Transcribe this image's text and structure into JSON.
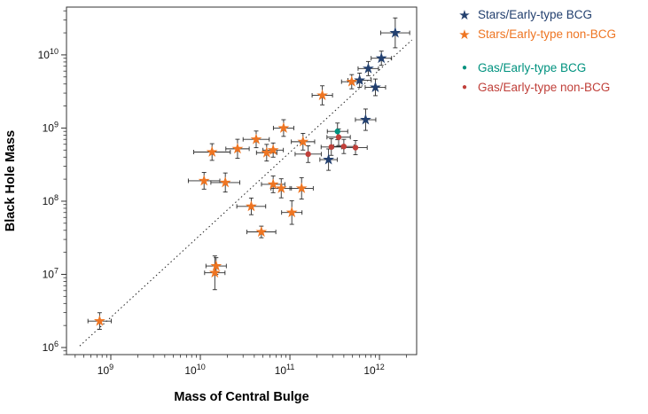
{
  "chart_data": {
    "type": "scatter",
    "title": "",
    "xlabel": "Mass of Central Bulge",
    "ylabel": "Black Hole Mass",
    "x_scale": "log",
    "y_scale": "log",
    "xlim": [
      320000000.0,
      2600000000000.0
    ],
    "ylim": [
      800000.0,
      45000000000.0
    ],
    "x_tick_exponents": [
      9,
      10,
      11,
      12
    ],
    "y_tick_exponents": [
      6,
      7,
      8,
      9,
      10
    ],
    "grid": false,
    "legend_position": "right-outside",
    "reference_line": {
      "style": "dotted",
      "color": "#222222",
      "points": [
        [
          450000000.0,
          1050000.0
        ],
        [
          2300000000000.0,
          16000000000.0
        ]
      ]
    },
    "axis_color": "#333333",
    "errorbar_color": "#2a2a2a",
    "series": [
      {
        "name": "Stars/Early-type BCG",
        "marker": "star",
        "color": "#23406f",
        "points": [
          [
            1500000000000.0,
            20000000000.0,
            1.45,
            1.6
          ],
          [
            1050000000000.0,
            9000000000.0,
            1.3,
            1.25
          ],
          [
            750000000000.0,
            6500000000.0,
            1.3,
            1.25
          ],
          [
            600000000000.0,
            4500000000.0,
            1.35,
            1.25
          ],
          [
            900000000000.0,
            3600000000.0,
            1.3,
            1.3
          ],
          [
            700000000000.0,
            1300000000.0,
            1.3,
            1.4
          ],
          [
            270000000000.0,
            370000000.0,
            1.25,
            1.4
          ]
        ]
      },
      {
        "name": "Stars/Early-type non-BCG",
        "marker": "star",
        "color": "#ee7522",
        "points": [
          [
            750000000.0,
            2300000.0,
            1.35,
            1.3
          ],
          [
            15000000000.0,
            13000000.0,
            1.3,
            1.3
          ],
          [
            14500000000.0,
            10500000.0,
            1.3,
            1.7
          ],
          [
            11000000000.0,
            190000000.0,
            1.5,
            1.3
          ],
          [
            19000000000.0,
            180000000.0,
            1.45,
            1.35
          ],
          [
            13500000000.0,
            470000000.0,
            1.6,
            1.3
          ],
          [
            26000000000.0,
            520000000.0,
            1.35,
            1.35
          ],
          [
            42000000000.0,
            700000000.0,
            1.4,
            1.3
          ],
          [
            55000000000.0,
            460000000.0,
            1.3,
            1.3
          ],
          [
            65000000000.0,
            500000000.0,
            1.3,
            1.25
          ],
          [
            37000000000.0,
            85000000.0,
            1.45,
            1.3
          ],
          [
            48000000000.0,
            38000000.0,
            1.45,
            1.2
          ],
          [
            65000000000.0,
            170000000.0,
            1.35,
            1.3
          ],
          [
            80000000000.0,
            150000000.0,
            1.3,
            1.35
          ],
          [
            85000000000.0,
            1000000000.0,
            1.3,
            1.3
          ],
          [
            105000000000.0,
            70000000.0,
            1.3,
            1.45
          ],
          [
            135000000000.0,
            150000000.0,
            1.35,
            1.4
          ],
          [
            140000000000.0,
            650000000.0,
            1.35,
            1.3
          ],
          [
            230000000000.0,
            2800000000.0,
            1.3,
            1.35
          ],
          [
            490000000000.0,
            4300000000.0,
            1.3,
            1.25
          ]
        ]
      },
      {
        "name": "Gas/Early-type BCG",
        "marker": "circle",
        "color": "#00927f",
        "points": [
          [
            340000000000.0,
            900000000.0,
            1.3,
            1.3
          ]
        ]
      },
      {
        "name": "Gas/Early-type non-BCG",
        "marker": "circle",
        "color": "#c0403a",
        "points": [
          [
            350000000000.0,
            750000000.0,
            1.35,
            1.3
          ],
          [
            290000000000.0,
            550000000.0,
            1.3,
            1.3
          ],
          [
            400000000000.0,
            560000000.0,
            1.3,
            1.25
          ],
          [
            540000000000.0,
            540000000.0,
            1.35,
            1.25
          ],
          [
            160000000000.0,
            440000000.0,
            1.4,
            1.3
          ]
        ]
      }
    ]
  }
}
